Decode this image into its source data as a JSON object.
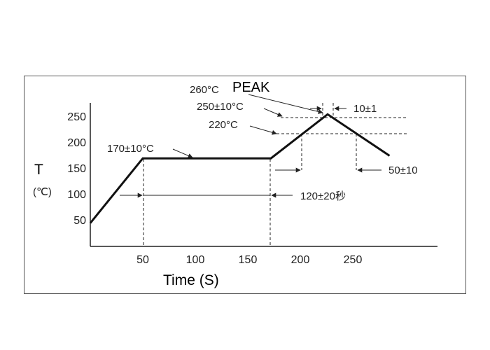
{
  "chart_data": {
    "type": "line",
    "xlabel": "Time (S)",
    "ylabel": "T",
    "yunit": "(℃)",
    "x_ticks": [
      50,
      100,
      150,
      200,
      250
    ],
    "y_ticks": [
      50,
      100,
      150,
      200,
      250
    ],
    "xlim": [
      0,
      300
    ],
    "ylim": [
      0,
      290
    ],
    "grid": false,
    "series": [
      {
        "x": [
          0,
          50,
          172,
          226,
          285
        ],
        "y": [
          45,
          170,
          170,
          255,
          175
        ]
      }
    ],
    "annotations": {
      "peak_temp": "260°C",
      "peak_word": "PEAK",
      "peak_range": "250±10°C",
      "level_220": "220°C",
      "soak_temp": "170±10°C",
      "peak_time": "10±1",
      "above_220_time": "50±10",
      "soak_time": "120±20秒"
    }
  },
  "colors": {
    "line": "#111111",
    "text": "#222222"
  }
}
